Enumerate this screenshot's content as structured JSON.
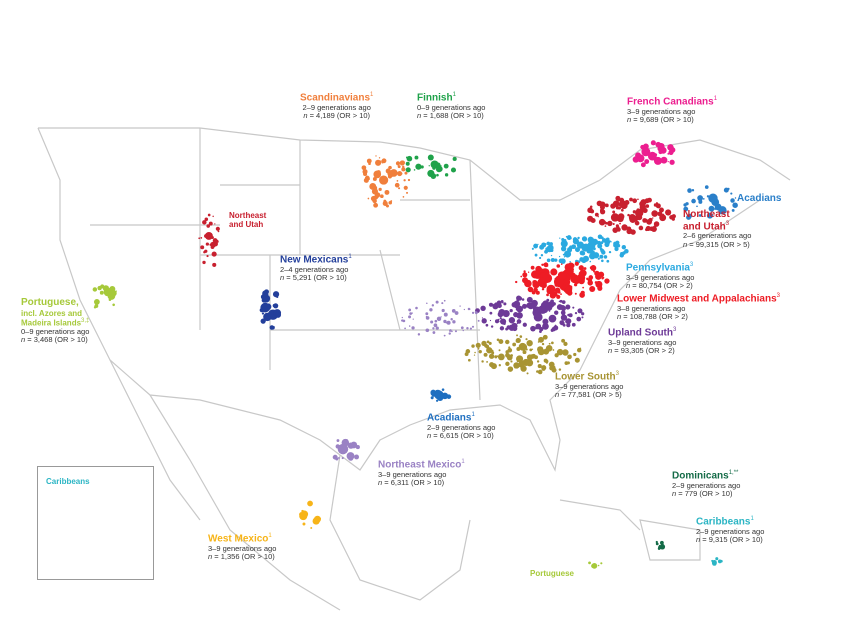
{
  "groups": [
    {
      "id": "scandinavians",
      "title": "Scandinavians",
      "sup": "1",
      "generations": "2–9 generations ago",
      "n": "4,189",
      "or": "(OR > 10)",
      "color": "#f07f3c"
    },
    {
      "id": "finnish",
      "title": "Finnish",
      "sup": "1",
      "generations": "0–9 generations ago",
      "n": "1,688",
      "or": "(OR > 10)",
      "color": "#1fa24a"
    },
    {
      "id": "french_canadians",
      "title": "French Canadians",
      "sup": "1",
      "generations": "3–9 generations ago",
      "n": "9,689",
      "or": "(OR > 10)",
      "color": "#ec1e8f"
    },
    {
      "id": "acadians_ne",
      "title": "Acadians",
      "sup": "",
      "color": "#2a7fc9"
    },
    {
      "id": "northeast_utah",
      "title_line1": "Northeast",
      "title_line2": "and Utah",
      "sup": "3",
      "generations": "2–6 generations ago",
      "n": "99,315",
      "or": "(OR > 5)",
      "color": "#c8202f"
    },
    {
      "id": "northeast_utah_west",
      "title_line1": "Northeast",
      "title_line2": "and Utah",
      "color": "#c8202f"
    },
    {
      "id": "pennsylvania",
      "title": "Pennsylvania",
      "sup": "3",
      "generations": "3–9 generations ago",
      "n": "80,754",
      "or": "(OR > 2)",
      "color": "#2aa9e0"
    },
    {
      "id": "lower_midwest",
      "title": "Lower Midwest and Appalachians",
      "sup": "3",
      "generations": "3–8 generations ago",
      "n": "108,788",
      "or": "(OR > 2)",
      "color": "#ee1c25"
    },
    {
      "id": "upland_south",
      "title": "Upland South",
      "sup": "3",
      "generations": "3–9 generations ago",
      "n": "93,305",
      "or": "(OR > 2)",
      "color": "#6d3a97"
    },
    {
      "id": "lower_south",
      "title": "Lower South",
      "sup": "3",
      "generations": "3–9 generations ago",
      "n": "77,581",
      "or": "(OR > 5)",
      "color": "#a89433"
    },
    {
      "id": "acadians_la",
      "title": "Acadians",
      "sup": "1",
      "generations": "2–9 generations ago",
      "n": "6,615",
      "or": "(OR > 10)",
      "color": "#1f6fc0"
    },
    {
      "id": "new_mexicans",
      "title": "New Mexicans",
      "sup": "1",
      "generations": "2–4 generations ago",
      "n": "5,291",
      "or": "(OR > 10)",
      "color": "#233f9b"
    },
    {
      "id": "portuguese",
      "title_line1": "Portuguese,",
      "title_line2": "incl. Azores and",
      "title_line3": "Madeira Islands",
      "sup": "3,‡",
      "generations": "0–9 generations ago",
      "n": "3,468",
      "or": "(OR > 10)",
      "color": "#a6c93a"
    },
    {
      "id": "northeast_mexico",
      "title": "Northeast Mexico",
      "sup": "1",
      "generations": "3–9 generations ago",
      "n": "6,311",
      "or": "(OR > 10)",
      "color": "#9a82c4"
    },
    {
      "id": "west_mexico",
      "title": "West Mexico",
      "sup": "1",
      "generations": "3–9 generations ago",
      "n": "1,356",
      "or": "(OR > 10)",
      "color": "#f7b418"
    },
    {
      "id": "dominicans",
      "title": "Dominicans",
      "sup": "1,**",
      "generations": "2–9 generations ago",
      "n": "779",
      "or": "(OR > 10)",
      "color": "#146b47"
    },
    {
      "id": "caribbeans",
      "title": "Caribbeans",
      "sup": "1",
      "generations": "2–9 generations ago",
      "n": "9,315",
      "or": "(OR > 10)",
      "color": "#2bb5c4"
    },
    {
      "id": "portuguese_carib",
      "title": "Portuguese",
      "color": "#a6c93a"
    }
  ],
  "inset": {
    "title": "Caribbeans",
    "color": "#2bb5c4"
  },
  "n_prefix": "n = ",
  "outline_color": "#c8c8c8"
}
